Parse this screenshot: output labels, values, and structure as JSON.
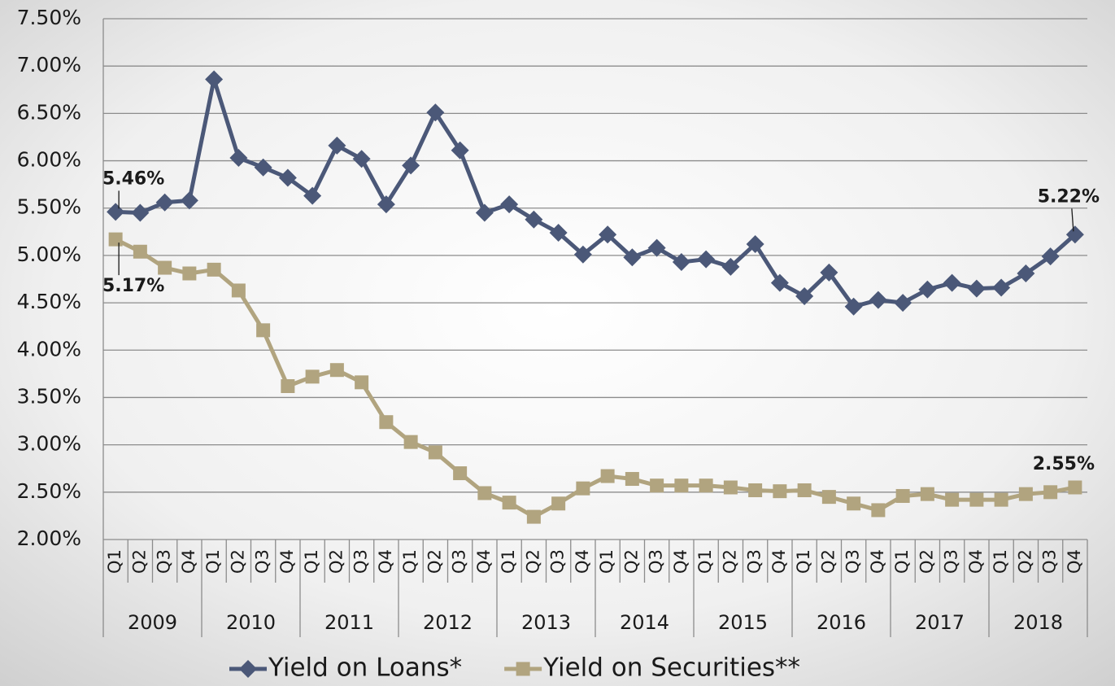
{
  "chart_data": {
    "type": "line",
    "categories": [
      "Q1",
      "Q2",
      "Q3",
      "Q4",
      "Q1",
      "Q2",
      "Q3",
      "Q4",
      "Q1",
      "Q2",
      "Q3",
      "Q4",
      "Q1",
      "Q2",
      "Q3",
      "Q4",
      "Q1",
      "Q2",
      "Q3",
      "Q4",
      "Q1",
      "Q2",
      "Q3",
      "Q4",
      "Q1",
      "Q2",
      "Q3",
      "Q4",
      "Q1",
      "Q2",
      "Q3",
      "Q4",
      "Q1",
      "Q2",
      "Q3",
      "Q4",
      "Q1",
      "Q2",
      "Q3",
      "Q4"
    ],
    "category_groups": [
      "2009",
      "2010",
      "2011",
      "2012",
      "2013",
      "2014",
      "2015",
      "2016",
      "2017",
      "2018"
    ],
    "series": [
      {
        "name": "Yield on Loans*",
        "color": "#4b5878",
        "marker": "diamond",
        "values": [
          5.46,
          5.45,
          5.56,
          5.58,
          6.86,
          6.03,
          5.93,
          5.82,
          5.63,
          6.16,
          6.02,
          5.54,
          5.95,
          6.51,
          6.11,
          5.45,
          5.54,
          5.38,
          5.24,
          5.01,
          5.22,
          4.98,
          5.08,
          4.93,
          4.96,
          4.88,
          5.12,
          4.71,
          4.57,
          4.82,
          4.46,
          4.53,
          4.5,
          4.64,
          4.71,
          4.65,
          4.66,
          4.81,
          4.99,
          5.22
        ],
        "value_labels": [
          "5.46%",
          null,
          null,
          null,
          null,
          null,
          null,
          null,
          null,
          null,
          null,
          null,
          null,
          null,
          null,
          null,
          null,
          null,
          null,
          null,
          null,
          null,
          null,
          null,
          null,
          null,
          null,
          null,
          null,
          null,
          null,
          null,
          null,
          null,
          null,
          null,
          null,
          null,
          null,
          "5.22%"
        ]
      },
      {
        "name": "Yield on Securities**",
        "color": "#b1a47f",
        "marker": "square",
        "values": [
          5.17,
          5.04,
          4.87,
          4.81,
          4.85,
          4.63,
          4.21,
          3.62,
          3.72,
          3.79,
          3.66,
          3.24,
          3.03,
          2.92,
          2.7,
          2.49,
          2.39,
          2.24,
          2.38,
          2.54,
          2.67,
          2.64,
          2.57,
          2.57,
          2.57,
          2.55,
          2.52,
          2.51,
          2.52,
          2.45,
          2.38,
          2.31,
          2.46,
          2.48,
          2.42,
          2.42,
          2.42,
          2.48,
          2.5,
          2.55
        ],
        "value_labels": [
          "5.17%",
          null,
          null,
          null,
          null,
          null,
          null,
          null,
          null,
          null,
          null,
          null,
          null,
          null,
          null,
          null,
          null,
          null,
          null,
          null,
          null,
          null,
          null,
          null,
          null,
          null,
          null,
          null,
          null,
          null,
          null,
          null,
          null,
          null,
          null,
          null,
          null,
          null,
          null,
          "2.55%"
        ]
      }
    ],
    "ylim": [
      2,
      7.5
    ],
    "yticks": [
      {
        "value": 2,
        "label": "2.00%"
      },
      {
        "value": 2.5,
        "label": "2.50%"
      },
      {
        "value": 3,
        "label": "3.00%"
      },
      {
        "value": 3.5,
        "label": "3.50%"
      },
      {
        "value": 4,
        "label": "4.00%"
      },
      {
        "value": 4.5,
        "label": "4.50%"
      },
      {
        "value": 5,
        "label": "5.00%"
      },
      {
        "value": 5.5,
        "label": "5.50%"
      },
      {
        "value": 6,
        "label": "6.00%"
      },
      {
        "value": 6.5,
        "label": "6.50%"
      },
      {
        "value": 7,
        "label": "7.00%"
      },
      {
        "value": 7.5,
        "label": "7.50%"
      }
    ],
    "grid": true,
    "legend": "bottom"
  }
}
